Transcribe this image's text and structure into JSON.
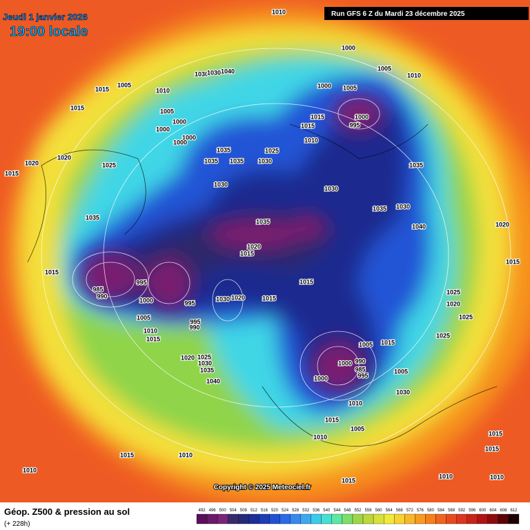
{
  "header": {
    "date": "Jeudi 1 janvier 2026",
    "time": "19:00 locale",
    "run": "Run GFS 6 Z du Mardi 23 décembre 2025"
  },
  "copyright": "Copyright © 2025 Meteociel.fr",
  "footer": {
    "title": "Géop. Z500 & pression au sol",
    "lead": "(+ 228h)"
  },
  "colorbar": {
    "values": [
      492,
      496,
      500,
      504,
      508,
      512,
      516,
      520,
      524,
      528,
      532,
      536,
      540,
      544,
      548,
      552,
      556,
      560,
      564,
      568,
      572,
      576,
      580,
      584,
      588,
      592,
      596,
      600,
      604,
      608,
      612
    ],
    "colors": [
      "#5a0f5a",
      "#6a1a6a",
      "#7a2478",
      "#3a2a6a",
      "#252a78",
      "#1c2e95",
      "#1e3cb4",
      "#2250d2",
      "#2a6ae6",
      "#3a86ee",
      "#3ea8ee",
      "#3ccbe8",
      "#46e0d0",
      "#5fe6a0",
      "#7ede6a",
      "#9ed64a",
      "#bcd63c",
      "#d8e03a",
      "#f0e83a",
      "#f6d232",
      "#f8b82a",
      "#f79c22",
      "#f4801e",
      "#f0641e",
      "#e84a20",
      "#dc3620",
      "#c82418",
      "#b01414",
      "#8e0c0c",
      "#5a0606",
      "#1a0000"
    ]
  },
  "isobars": [
    1010,
    1000,
    1005,
    1010,
    1000,
    1005,
    1015,
    1005,
    1010,
    1005,
    1000,
    1000,
    1000,
    1000,
    1015,
    1020,
    1020,
    1025,
    1015,
    1035,
    1035,
    1035,
    1030,
    1025,
    1030,
    1035,
    1035,
    1020,
    1015,
    1015,
    1015,
    985,
    990,
    995,
    1000,
    995,
    1005,
    1010,
    1015,
    995,
    990,
    1030,
    1020,
    1015,
    1015,
    1015,
    1010,
    995,
    1000,
    1030,
    1035,
    1035,
    1030,
    1040,
    1020,
    1015,
    1025,
    1020,
    1025,
    1025,
    1005,
    1015,
    1000,
    990,
    985,
    995,
    1000,
    1005,
    1030,
    1010,
    1015,
    1005,
    1010,
    1025,
    1020,
    1030,
    1035,
    1040,
    1015,
    1010,
    1010,
    1015,
    1010,
    1010,
    1015,
    1015,
    1040,
    1030,
    1030
  ]
}
